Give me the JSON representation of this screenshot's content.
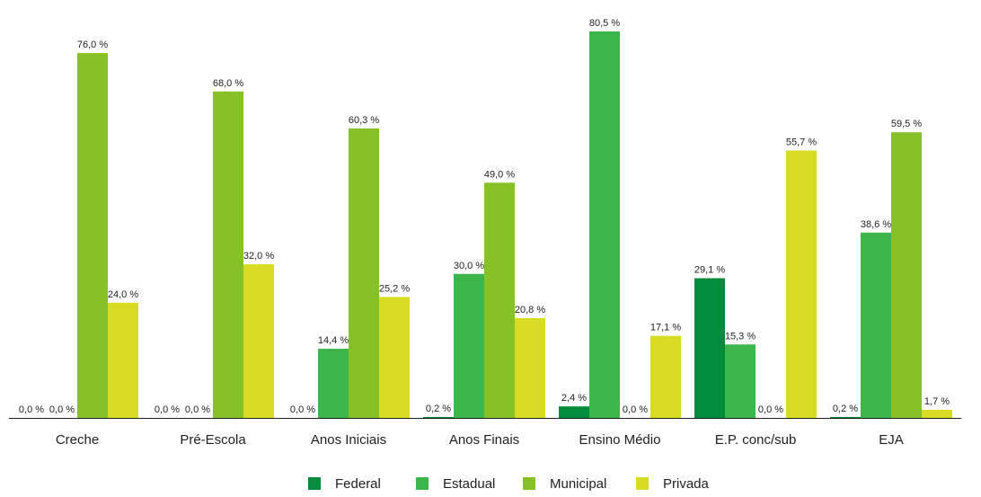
{
  "chart_data": {
    "type": "bar",
    "categories": [
      "Creche",
      "Pré-Escola",
      "Anos Iniciais",
      "Anos Finais",
      "Ensino Médio",
      "E.P. conc/sub",
      "EJA"
    ],
    "series": [
      {
        "name": "Federal",
        "color": "#008c3a",
        "values": [
          0.0,
          0.0,
          0.0,
          0.2,
          2.4,
          29.1,
          0.2
        ],
        "labels": [
          "0,0 %",
          "0,0 %",
          "0,0 %",
          "0,2 %",
          "2,4 %",
          "29,1 %",
          "0,2 %"
        ]
      },
      {
        "name": "Estadual",
        "color": "#3cb54a",
        "values": [
          0.0,
          0.0,
          14.4,
          30.0,
          80.5,
          15.3,
          38.6
        ],
        "labels": [
          "0,0 %",
          "0,0 %",
          "14,4 %",
          "30,0 %",
          "80,5 %",
          "15,3 %",
          "38,6 %"
        ]
      },
      {
        "name": "Municipal",
        "color": "#86c226",
        "values": [
          76.0,
          68.0,
          60.3,
          49.0,
          0.0,
          0.0,
          59.5
        ],
        "labels": [
          "76,0 %",
          "68,0 %",
          "60,3 %",
          "49,0 %",
          "0,0 %",
          "0,0 %",
          "59,5 %"
        ]
      },
      {
        "name": "Privada",
        "color": "#d8dd23",
        "values": [
          24.0,
          32.0,
          25.2,
          20.8,
          17.1,
          55.7,
          1.7
        ],
        "labels": [
          "24,0 %",
          "32,0 %",
          "25,2 %",
          "20,8 %",
          "17,1 %",
          "55,7 %",
          "1,7 %"
        ]
      }
    ],
    "ylim": [
      0,
      80.5
    ],
    "grid": false,
    "legend": "bottom-center",
    "title": "",
    "xlabel": "",
    "ylabel": ""
  }
}
